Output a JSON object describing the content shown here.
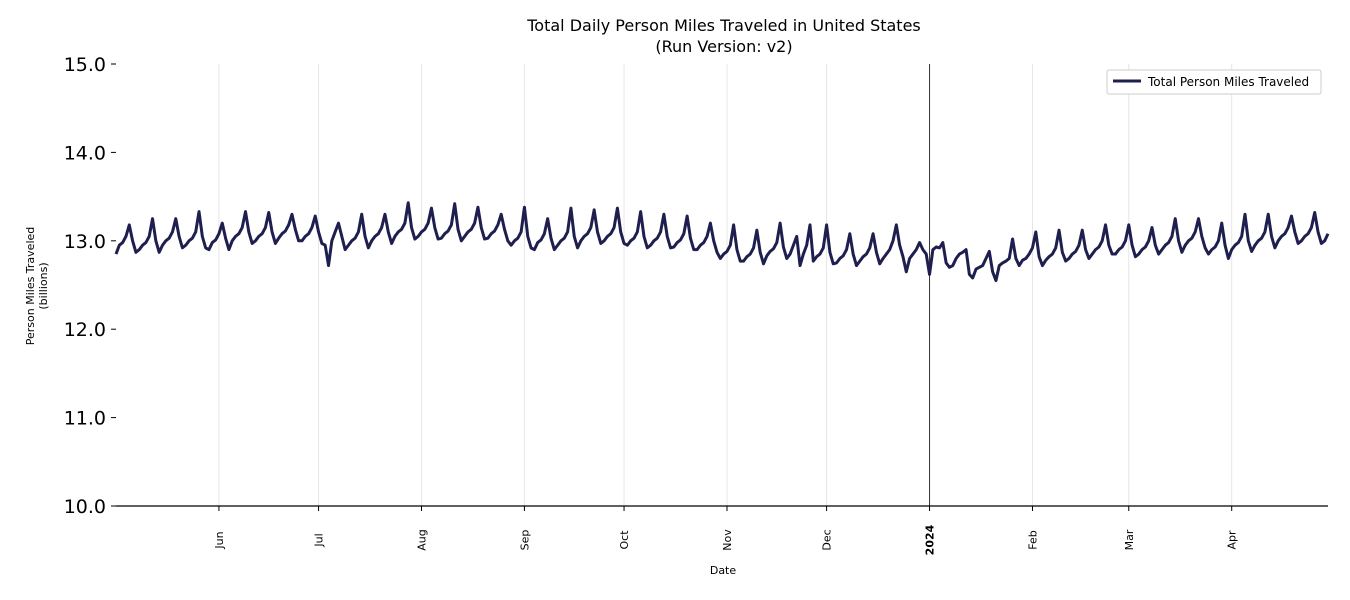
{
  "chart_data": {
    "type": "line",
    "title": "Total Daily Person Miles Traveled in United States",
    "subtitle": "(Run Version: v2)",
    "xlabel": "Date",
    "ylabel": [
      "Person Miles Traveled",
      "(billions)"
    ],
    "x_frequency": "daily",
    "xlim": [
      "2023-05-01",
      "2024-04-30"
    ],
    "ylim": [
      10.0,
      15.0
    ],
    "y_ticks": [
      "10.0",
      "11.0",
      "12.0",
      "13.0",
      "14.0",
      "15.0"
    ],
    "x_ticks": [
      {
        "date": "2023-06-01",
        "label": "Jun",
        "bold": false
      },
      {
        "date": "2023-07-01",
        "label": "Jul",
        "bold": false
      },
      {
        "date": "2023-08-01",
        "label": "Aug",
        "bold": false
      },
      {
        "date": "2023-09-01",
        "label": "Sep",
        "bold": false
      },
      {
        "date": "2023-10-01",
        "label": "Oct",
        "bold": false
      },
      {
        "date": "2023-11-01",
        "label": "Nov",
        "bold": false
      },
      {
        "date": "2023-12-01",
        "label": "Dec",
        "bold": false
      },
      {
        "date": "2024-01-01",
        "label": "2024",
        "bold": true
      },
      {
        "date": "2024-02-01",
        "label": "Feb",
        "bold": false
      },
      {
        "date": "2024-03-01",
        "label": "Mar",
        "bold": false
      },
      {
        "date": "2024-04-01",
        "label": "Apr",
        "bold": false
      }
    ],
    "grid": "vertical at month ticks",
    "year_marker_line": "2024-01-01",
    "legend_position": "top-right",
    "series": [
      {
        "name": "Total Person Miles Traveled",
        "color": "#1f1f4f",
        "values": [
          12.85,
          12.95,
          12.98,
          13.05,
          13.18,
          13.0,
          12.87,
          12.9,
          12.95,
          12.98,
          13.05,
          13.25,
          13.0,
          12.87,
          12.95,
          13.0,
          13.03,
          13.1,
          13.25,
          13.05,
          12.92,
          12.95,
          13.0,
          13.03,
          13.1,
          13.33,
          13.05,
          12.92,
          12.9,
          12.98,
          13.01,
          13.08,
          13.2,
          13.03,
          12.9,
          13.0,
          13.05,
          13.08,
          13.15,
          13.33,
          13.1,
          12.97,
          13.0,
          13.05,
          13.08,
          13.15,
          13.32,
          13.1,
          12.97,
          13.03,
          13.08,
          13.11,
          13.18,
          13.3,
          13.13,
          13.0,
          13.0,
          13.05,
          13.08,
          13.15,
          13.28,
          13.1,
          12.97,
          12.95,
          12.72,
          13.0,
          13.1,
          13.2,
          13.05,
          12.9,
          12.95,
          13.0,
          13.03,
          13.1,
          13.3,
          13.05,
          12.92,
          13.0,
          13.05,
          13.08,
          13.15,
          13.3,
          13.1,
          12.97,
          13.05,
          13.1,
          13.13,
          13.2,
          13.43,
          13.15,
          13.02,
          13.05,
          13.1,
          13.13,
          13.2,
          13.37,
          13.15,
          13.02,
          13.03,
          13.08,
          13.11,
          13.18,
          13.42,
          13.13,
          13.0,
          13.05,
          13.1,
          13.13,
          13.2,
          13.38,
          13.15,
          13.02,
          13.03,
          13.08,
          13.11,
          13.18,
          13.3,
          13.13,
          13.0,
          12.95,
          13.0,
          13.03,
          13.1,
          13.38,
          13.05,
          12.92,
          12.9,
          12.98,
          13.01,
          13.08,
          13.25,
          13.03,
          12.9,
          12.95,
          13.0,
          13.03,
          13.1,
          13.37,
          13.05,
          12.92,
          13.0,
          13.05,
          13.08,
          13.15,
          13.35,
          13.1,
          12.97,
          13.0,
          13.05,
          13.08,
          13.15,
          13.37,
          13.1,
          12.97,
          12.95,
          13.0,
          13.03,
          13.1,
          13.33,
          13.05,
          12.92,
          12.95,
          13.0,
          13.03,
          13.1,
          13.3,
          13.05,
          12.92,
          12.93,
          12.98,
          13.01,
          13.08,
          13.28,
          13.03,
          12.9,
          12.9,
          12.95,
          12.98,
          13.05,
          13.2,
          13.0,
          12.87,
          12.8,
          12.85,
          12.88,
          12.95,
          13.18,
          12.9,
          12.77,
          12.77,
          12.82,
          12.85,
          12.92,
          13.12,
          12.87,
          12.74,
          12.83,
          12.88,
          12.91,
          12.98,
          13.2,
          12.93,
          12.8,
          12.85,
          12.95,
          13.05,
          12.72,
          12.85,
          12.95,
          13.18,
          12.77,
          12.82,
          12.85,
          12.92,
          13.18,
          12.87,
          12.74,
          12.75,
          12.8,
          12.83,
          12.9,
          13.08,
          12.85,
          12.72,
          12.77,
          12.82,
          12.85,
          12.92,
          13.08,
          12.87,
          12.74,
          12.8,
          12.85,
          12.9,
          13.0,
          13.18,
          12.95,
          12.82,
          12.65,
          12.8,
          12.85,
          12.9,
          12.98,
          12.9,
          12.85,
          12.62,
          12.9,
          12.93,
          12.92,
          12.98,
          12.75,
          12.7,
          12.72,
          12.8,
          12.85,
          12.87,
          12.9,
          12.62,
          12.58,
          12.68,
          12.7,
          12.72,
          12.8,
          12.88,
          12.65,
          12.55,
          12.72,
          12.75,
          12.77,
          12.8,
          13.02,
          12.8,
          12.72,
          12.78,
          12.8,
          12.85,
          12.92,
          13.1,
          12.82,
          12.72,
          12.78,
          12.82,
          12.85,
          12.92,
          13.12,
          12.87,
          12.77,
          12.8,
          12.85,
          12.88,
          12.95,
          13.12,
          12.9,
          12.8,
          12.85,
          12.9,
          12.93,
          13.0,
          13.18,
          12.95,
          12.85,
          12.85,
          12.9,
          12.93,
          13.0,
          13.18,
          12.95,
          12.82,
          12.85,
          12.9,
          12.93,
          13.0,
          13.15,
          12.95,
          12.85,
          12.9,
          12.95,
          12.98,
          13.05,
          13.25,
          13.0,
          12.87,
          12.95,
          13.0,
          13.03,
          13.1,
          13.25,
          13.05,
          12.92,
          12.85,
          12.9,
          12.93,
          13.0,
          13.2,
          12.95,
          12.8,
          12.9,
          12.95,
          12.98,
          13.05,
          13.3,
          13.0,
          12.88,
          12.95,
          13.0,
          13.03,
          13.1,
          13.3,
          13.05,
          12.92,
          13.0,
          13.05,
          13.08,
          13.15,
          13.28,
          13.1,
          12.97,
          13.0,
          13.05,
          13.08,
          13.15,
          13.32,
          13.1,
          12.97,
          13.0,
          13.08
        ]
      }
    ]
  }
}
